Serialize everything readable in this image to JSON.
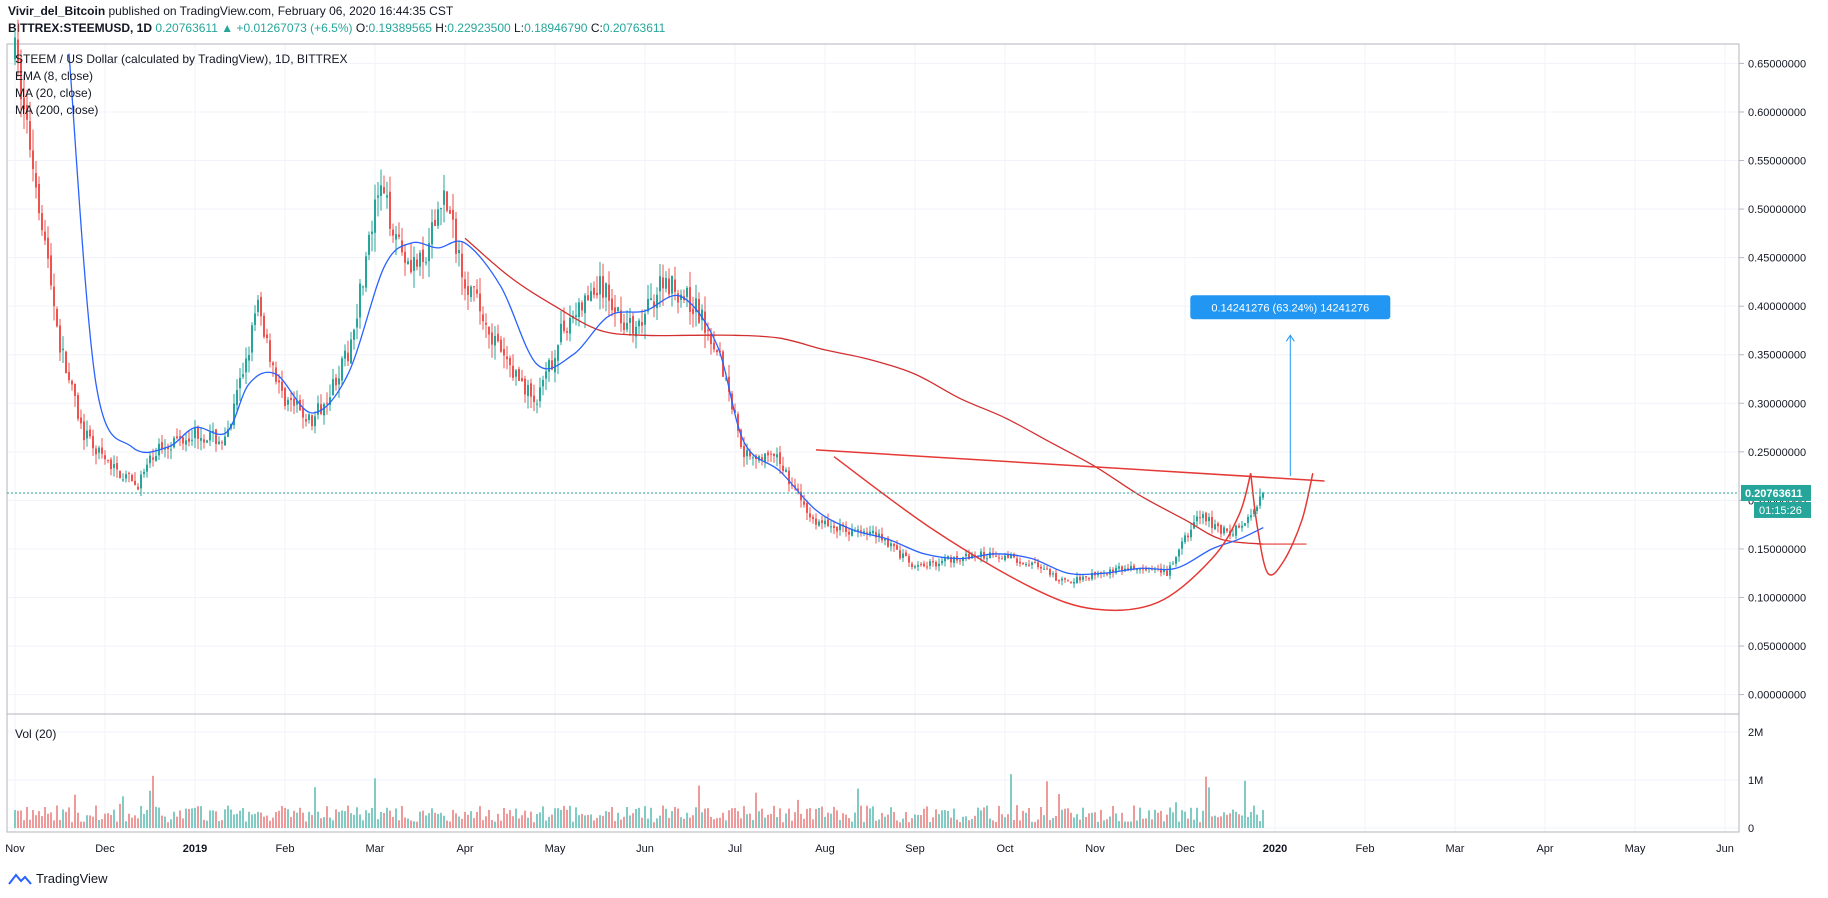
{
  "header": {
    "author": "Vivir_del_Bitcoin",
    "published": "published on TradingView.com, February 06, 2020 16:44:35 CST",
    "symbol": "BITTREX:STEEMUSD, 1D",
    "last": "0.20763611",
    "change": "▲ +0.01267073 (+6.5%)",
    "o_label": "O:",
    "o": "0.19389565",
    "h_label": "H:",
    "h": "0.22923500",
    "l_label": "L:",
    "l": "0.18946790",
    "c_label": "C:",
    "c": "0.20763611"
  },
  "legend": {
    "title": "STEEM / US Dollar (calculated by TradingView), 1D, BITTREX",
    "ema": "EMA (8, close)",
    "ma20": "MA (20, close)",
    "ma200": "MA (200, close)"
  },
  "volume_label": "Vol (20)",
  "price_badge": "0.20763611",
  "time_badge": "01:15:26",
  "measure_label": "0.14241276 (63.24%) 14241276",
  "brand": "TradingView",
  "colors": {
    "up": "#26a69a",
    "down": "#ef5350",
    "ema": "#ef5350",
    "ma20": "#2962ff",
    "ma200": "#d32f2f",
    "measure": "#2196f3",
    "drawings": "#e53935"
  },
  "chart_data": {
    "type": "candlestick",
    "symbol": "STEEM/USD",
    "interval": "1D",
    "x_labels": [
      "Nov",
      "Dec",
      "2019",
      "Feb",
      "Mar",
      "Apr",
      "May",
      "Jun",
      "Jul",
      "Aug",
      "Sep",
      "Oct",
      "Nov",
      "Dec",
      "2020",
      "Feb",
      "Mar",
      "Apr",
      "May",
      "Jun"
    ],
    "y_ticks": [
      "0.65000000",
      "0.60000000",
      "0.55000000",
      "0.50000000",
      "0.45000000",
      "0.40000000",
      "0.35000000",
      "0.30000000",
      "0.25000000",
      "0.20000000",
      "0.15000000",
      "0.10000000",
      "0.05000000",
      "0.00000000"
    ],
    "ylim": [
      -0.02,
      0.67
    ],
    "volume_ticks": [
      "2M",
      "1M",
      "0"
    ],
    "price_path": [
      {
        "m": 0.0,
        "p": 0.66
      },
      {
        "m": 0.25,
        "p": 0.52
      },
      {
        "m": 0.5,
        "p": 0.36
      },
      {
        "m": 0.75,
        "p": 0.27
      },
      {
        "m": 1.0,
        "p": 0.24
      },
      {
        "m": 1.35,
        "p": 0.215
      },
      {
        "m": 1.6,
        "p": 0.255
      },
      {
        "m": 2.0,
        "p": 0.27
      },
      {
        "m": 2.35,
        "p": 0.26
      },
      {
        "m": 2.7,
        "p": 0.4
      },
      {
        "m": 2.95,
        "p": 0.31
      },
      {
        "m": 3.3,
        "p": 0.28
      },
      {
        "m": 3.7,
        "p": 0.35
      },
      {
        "m": 4.05,
        "p": 0.52
      },
      {
        "m": 4.35,
        "p": 0.45
      },
      {
        "m": 4.55,
        "p": 0.44
      },
      {
        "m": 4.75,
        "p": 0.52
      },
      {
        "m": 5.0,
        "p": 0.43
      },
      {
        "m": 5.4,
        "p": 0.35
      },
      {
        "m": 5.8,
        "p": 0.3
      },
      {
        "m": 6.1,
        "p": 0.38
      },
      {
        "m": 6.5,
        "p": 0.42
      },
      {
        "m": 6.9,
        "p": 0.37
      },
      {
        "m": 7.2,
        "p": 0.43
      },
      {
        "m": 7.55,
        "p": 0.4
      },
      {
        "m": 7.8,
        "p": 0.36
      },
      {
        "m": 8.1,
        "p": 0.25
      },
      {
        "m": 8.5,
        "p": 0.24
      },
      {
        "m": 8.85,
        "p": 0.18
      },
      {
        "m": 9.2,
        "p": 0.17
      },
      {
        "m": 9.6,
        "p": 0.165
      },
      {
        "m": 10.0,
        "p": 0.13
      },
      {
        "m": 10.4,
        "p": 0.14
      },
      {
        "m": 10.9,
        "p": 0.145
      },
      {
        "m": 11.3,
        "p": 0.135
      },
      {
        "m": 11.65,
        "p": 0.115
      },
      {
        "m": 12.0,
        "p": 0.125
      },
      {
        "m": 12.4,
        "p": 0.13
      },
      {
        "m": 12.8,
        "p": 0.125
      },
      {
        "m": 13.15,
        "p": 0.185
      },
      {
        "m": 13.5,
        "p": 0.165
      },
      {
        "m": 13.7,
        "p": 0.18
      },
      {
        "m": 13.85,
        "p": 0.2076
      }
    ],
    "ema8": [
      {
        "m": 0.6,
        "p": 0.66
      },
      {
        "m": 0.9,
        "p": 0.32
      },
      {
        "m": 1.3,
        "p": 0.255
      },
      {
        "m": 1.7,
        "p": 0.255
      },
      {
        "m": 2.0,
        "p": 0.275
      },
      {
        "m": 2.35,
        "p": 0.27
      },
      {
        "m": 2.6,
        "p": 0.32
      },
      {
        "m": 2.9,
        "p": 0.33
      },
      {
        "m": 3.3,
        "p": 0.29
      },
      {
        "m": 3.7,
        "p": 0.33
      },
      {
        "m": 4.1,
        "p": 0.44
      },
      {
        "m": 4.4,
        "p": 0.465
      },
      {
        "m": 4.7,
        "p": 0.46
      },
      {
        "m": 5.0,
        "p": 0.465
      },
      {
        "m": 5.4,
        "p": 0.42
      },
      {
        "m": 5.8,
        "p": 0.34
      },
      {
        "m": 6.2,
        "p": 0.35
      },
      {
        "m": 6.6,
        "p": 0.39
      },
      {
        "m": 7.0,
        "p": 0.395
      },
      {
        "m": 7.4,
        "p": 0.41
      },
      {
        "m": 7.8,
        "p": 0.36
      },
      {
        "m": 8.1,
        "p": 0.26
      },
      {
        "m": 8.5,
        "p": 0.23
      },
      {
        "m": 8.9,
        "p": 0.19
      },
      {
        "m": 9.3,
        "p": 0.17
      },
      {
        "m": 9.7,
        "p": 0.16
      },
      {
        "m": 10.1,
        "p": 0.145
      },
      {
        "m": 10.5,
        "p": 0.14
      },
      {
        "m": 10.9,
        "p": 0.145
      },
      {
        "m": 11.3,
        "p": 0.14
      },
      {
        "m": 11.7,
        "p": 0.125
      },
      {
        "m": 12.1,
        "p": 0.125
      },
      {
        "m": 12.5,
        "p": 0.13
      },
      {
        "m": 12.9,
        "p": 0.13
      },
      {
        "m": 13.3,
        "p": 0.15
      },
      {
        "m": 13.6,
        "p": 0.16
      },
      {
        "m": 13.87,
        "p": 0.172
      }
    ],
    "ma200": [
      {
        "m": 5.0,
        "p": 0.47
      },
      {
        "m": 5.5,
        "p": 0.43
      },
      {
        "m": 6.0,
        "p": 0.4
      },
      {
        "m": 6.5,
        "p": 0.375
      },
      {
        "m": 7.0,
        "p": 0.37
      },
      {
        "m": 7.5,
        "p": 0.37
      },
      {
        "m": 8.0,
        "p": 0.37
      },
      {
        "m": 8.5,
        "p": 0.367
      },
      {
        "m": 9.0,
        "p": 0.355
      },
      {
        "m": 9.5,
        "p": 0.345
      },
      {
        "m": 10.0,
        "p": 0.33
      },
      {
        "m": 10.5,
        "p": 0.305
      },
      {
        "m": 11.0,
        "p": 0.285
      },
      {
        "m": 11.5,
        "p": 0.26
      },
      {
        "m": 12.0,
        "p": 0.235
      },
      {
        "m": 12.5,
        "p": 0.205
      },
      {
        "m": 13.0,
        "p": 0.18
      },
      {
        "m": 13.4,
        "p": 0.16
      },
      {
        "m": 13.87,
        "p": 0.155
      }
    ],
    "trendline": {
      "m1": 8.9,
      "p1": 0.252,
      "m2": 14.55,
      "p2": 0.22
    },
    "rounded_bottom": [
      {
        "m": 9.1,
        "p": 0.245
      },
      {
        "m": 10.2,
        "p": 0.17
      },
      {
        "m": 11.3,
        "p": 0.11
      },
      {
        "m": 12.0,
        "p": 0.088
      },
      {
        "m": 12.7,
        "p": 0.095
      },
      {
        "m": 13.3,
        "p": 0.14
      },
      {
        "m": 13.6,
        "p": 0.185
      },
      {
        "m": 13.73,
        "p": 0.228
      }
    ],
    "handle": [
      {
        "m": 13.73,
        "p": 0.228
      },
      {
        "m": 13.8,
        "p": 0.175
      },
      {
        "m": 13.92,
        "p": 0.125
      },
      {
        "m": 14.1,
        "p": 0.138
      },
      {
        "m": 14.3,
        "p": 0.18
      },
      {
        "m": 14.42,
        "p": 0.228
      }
    ],
    "handle_line": {
      "m1": 13.8,
      "p1": 0.155,
      "m2": 14.35,
      "p2": 0.155
    },
    "measure": {
      "m": 14.17,
      "p_from": 0.225,
      "p_to": 0.37,
      "value": 0.14241276,
      "percent": 63.24
    },
    "last_price": 0.20763611
  }
}
